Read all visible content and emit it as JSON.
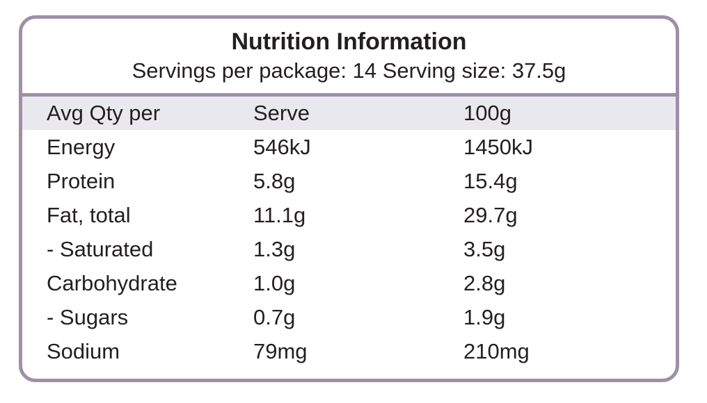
{
  "panel": {
    "title": "Nutrition Information",
    "servings_line": "Servings per package: 14 Serving size: 37.5g"
  },
  "table": {
    "columns": [
      "Avg Qty per",
      "Serve",
      "100g"
    ],
    "rows": [
      {
        "nutrient": "Energy",
        "serve": "546kJ",
        "per100g": "1450kJ"
      },
      {
        "nutrient": "Protein",
        "serve": "5.8g",
        "per100g": "15.4g"
      },
      {
        "nutrient": "Fat, total",
        "serve": "11.1g",
        "per100g": "29.7g"
      },
      {
        "nutrient": "- Saturated",
        "serve": "1.3g",
        "per100g": "3.5g"
      },
      {
        "nutrient": "Carbohydrate",
        "serve": "1.0g",
        "per100g": "2.8g"
      },
      {
        "nutrient": "- Sugars",
        "serve": "0.7g",
        "per100g": "1.9g"
      },
      {
        "nutrient": "Sodium",
        "serve": "79mg",
        "per100g": "210mg"
      }
    ]
  },
  "colors": {
    "border": "#a08fa8",
    "header_band": "#eae8ef",
    "text": "#231f20",
    "background": "#ffffff"
  }
}
